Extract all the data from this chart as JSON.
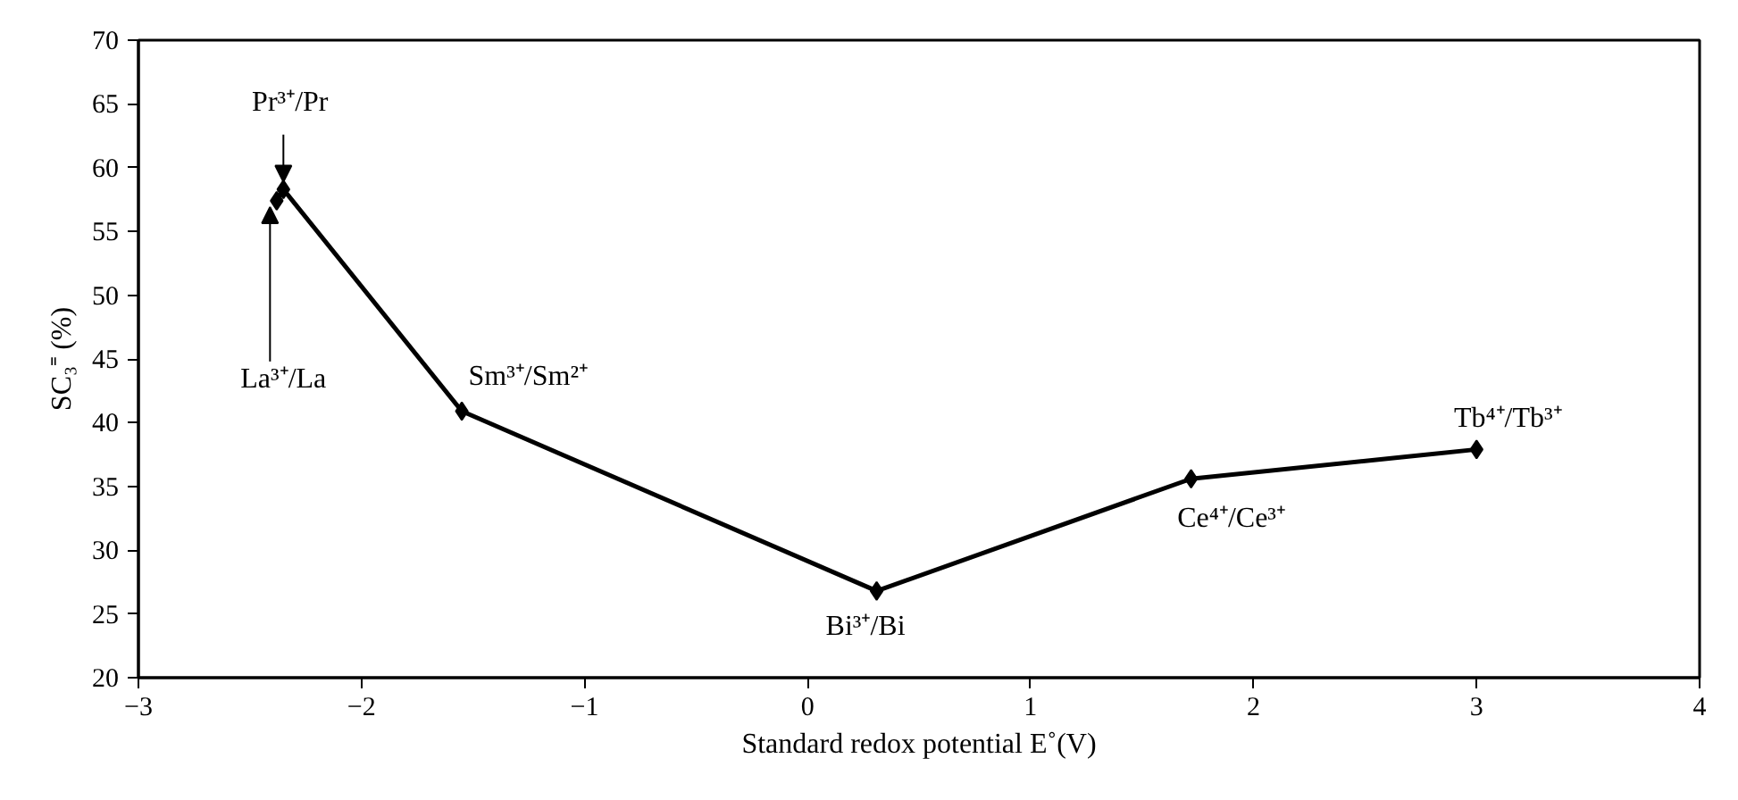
{
  "chart_data": {
    "type": "line",
    "xlabel": "Standard redox potential E˚(V)",
    "ylabel": "SC₃⁼ (%)",
    "x": [
      -2.38,
      -2.35,
      -1.55,
      0.31,
      1.72,
      3.0
    ],
    "series": [
      {
        "color": "#000000",
        "values": [
          57.4,
          58.3,
          40.9,
          26.8,
          35.6,
          37.9
        ]
      }
    ],
    "xlim": [
      -3,
      4
    ],
    "xticks": [
      -3,
      -2,
      -1,
      0,
      1,
      2,
      3,
      4
    ],
    "ylim": [
      20,
      70
    ],
    "yticks": [
      20,
      25,
      30,
      35,
      40,
      45,
      50,
      55,
      60,
      65,
      70
    ],
    "grid": false,
    "marker": "diamond",
    "line_style": "solid",
    "annotations": [
      {
        "text": "La³⁺/La",
        "x": -2.38,
        "y": 57.4
      },
      {
        "text": "Pr³⁺/Pr",
        "x": -2.35,
        "y": 58.3
      },
      {
        "text": "Sm³⁺/Sm²⁺",
        "x": -1.55,
        "y": 40.9
      },
      {
        "text": "Bi³⁺/Bi",
        "x": 0.31,
        "y": 26.8
      },
      {
        "text": "Ce⁴⁺/Ce³⁺",
        "x": 1.72,
        "y": 35.6
      },
      {
        "text": "Tb⁴⁺/Tb³⁺",
        "x": 3.0,
        "y": 37.9
      }
    ]
  }
}
